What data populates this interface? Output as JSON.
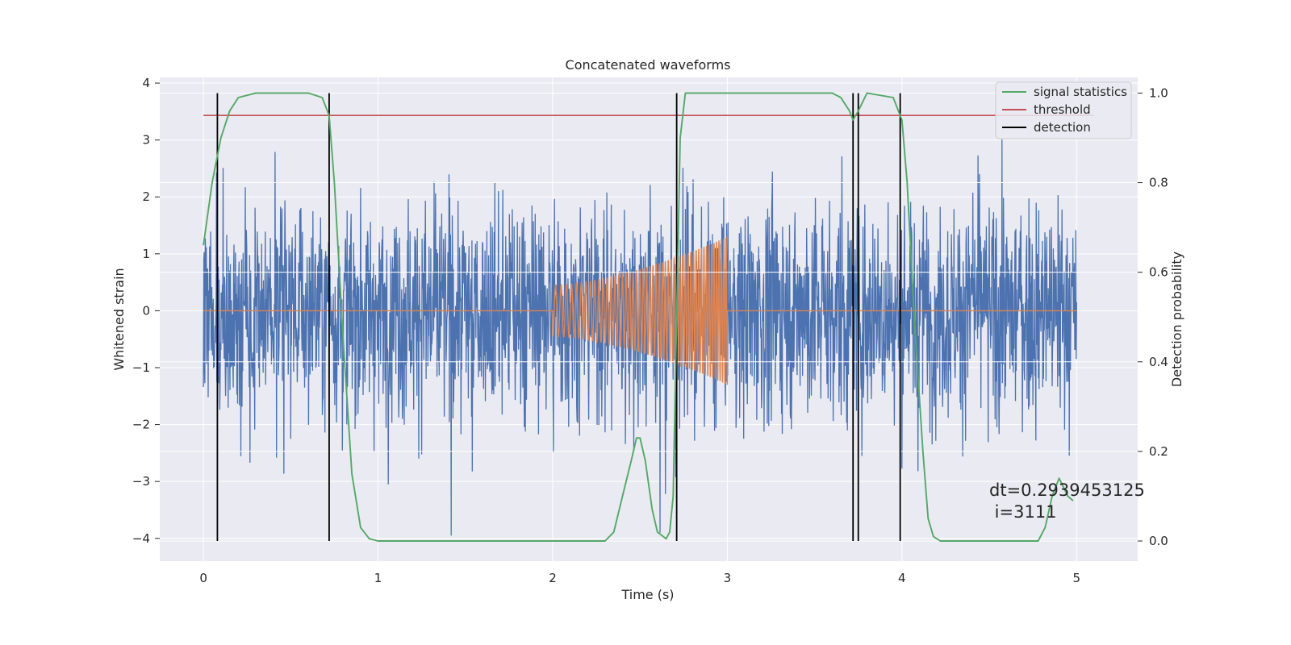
{
  "chart_data": {
    "type": "line",
    "title": "Concatenated waveforms",
    "xlabel": "Time (s)",
    "ylabel": "Whitened strain",
    "ylabel_right": "Detection probability",
    "xlim": [
      -0.25,
      5.35
    ],
    "ylim": [
      -4.4,
      4.1
    ],
    "ylim_right": [
      -0.045,
      1.035
    ],
    "xticks": [
      0,
      1,
      2,
      3,
      4,
      5
    ],
    "yticks": [
      -4,
      -3,
      -2,
      -1,
      0,
      1,
      2,
      3,
      4
    ],
    "yticks_right": [
      0.0,
      0.2,
      0.4,
      0.6,
      0.8,
      1.0
    ],
    "xtick_labels": [
      "0",
      "1",
      "2",
      "3",
      "4",
      "5"
    ],
    "ytick_labels": [
      "−4",
      "−3",
      "−2",
      "−1",
      "0",
      "1",
      "2",
      "3",
      "4"
    ],
    "ytick_right_labels": [
      "0.0",
      "0.2",
      "0.4",
      "0.6",
      "0.8",
      "1.0"
    ],
    "grid": true,
    "legend_position": "top-right",
    "legend": [
      {
        "label": "signal statistics",
        "color": "#55a868"
      },
      {
        "label": "threshold",
        "color": "#c44e52"
      },
      {
        "label": "detection",
        "color": "#000000"
      }
    ],
    "colors": {
      "strain": "#4c72b0",
      "injection": "#dd8452",
      "signal_statistics": "#55a868",
      "threshold": "#c44e52",
      "detection": "#000000",
      "plot_background": "#eaeaf2",
      "grid": "#ffffff"
    },
    "series": [
      {
        "name": "strain",
        "axis": "left",
        "x_range": [
          0,
          5
        ],
        "amplitude_range": [
          -4.0,
          3.7
        ],
        "description_values": {
          "typical_min": -1.3,
          "typical_max": 1.3
        }
      },
      {
        "name": "injection",
        "axis": "left",
        "x_range": [
          0,
          5
        ],
        "chirp_start": 2.0,
        "chirp_end": 3.0,
        "amplitude_start": 0.45,
        "amplitude_end": 1.3
      },
      {
        "name": "signal statistics",
        "axis": "right",
        "points": [
          [
            0.0,
            0.66
          ],
          [
            0.05,
            0.8
          ],
          [
            0.1,
            0.9
          ],
          [
            0.15,
            0.96
          ],
          [
            0.2,
            0.99
          ],
          [
            0.3,
            1.0
          ],
          [
            0.6,
            1.0
          ],
          [
            0.68,
            0.99
          ],
          [
            0.72,
            0.95
          ],
          [
            0.75,
            0.8
          ],
          [
            0.8,
            0.45
          ],
          [
            0.85,
            0.15
          ],
          [
            0.9,
            0.03
          ],
          [
            0.95,
            0.005
          ],
          [
            1.0,
            0.0
          ],
          [
            2.3,
            0.0
          ],
          [
            2.35,
            0.02
          ],
          [
            2.4,
            0.1
          ],
          [
            2.45,
            0.18
          ],
          [
            2.48,
            0.23
          ],
          [
            2.5,
            0.23
          ],
          [
            2.53,
            0.18
          ],
          [
            2.57,
            0.07
          ],
          [
            2.6,
            0.02
          ],
          [
            2.65,
            0.005
          ],
          [
            2.67,
            0.02
          ],
          [
            2.69,
            0.1
          ],
          [
            2.71,
            0.5
          ],
          [
            2.73,
            0.9
          ],
          [
            2.76,
            1.0
          ],
          [
            3.6,
            1.0
          ],
          [
            3.65,
            0.99
          ],
          [
            3.7,
            0.96
          ],
          [
            3.72,
            0.94
          ],
          [
            3.75,
            0.96
          ],
          [
            3.8,
            1.0
          ],
          [
            3.95,
            0.99
          ],
          [
            4.0,
            0.94
          ],
          [
            4.03,
            0.8
          ],
          [
            4.07,
            0.5
          ],
          [
            4.12,
            0.2
          ],
          [
            4.15,
            0.05
          ],
          [
            4.18,
            0.01
          ],
          [
            4.22,
            0.0
          ],
          [
            4.78,
            0.0
          ],
          [
            4.82,
            0.03
          ],
          [
            4.86,
            0.1
          ],
          [
            4.9,
            0.14
          ],
          [
            4.95,
            0.1
          ],
          [
            4.98,
            0.09
          ]
        ]
      },
      {
        "name": "threshold",
        "axis": "right",
        "x": [
          0,
          5.1
        ],
        "value": 0.95
      },
      {
        "name": "detection",
        "axis": "right",
        "x_values": [
          0.08,
          0.72,
          2.71,
          3.72,
          3.75,
          3.99
        ],
        "y_range": [
          0.0,
          1.0
        ]
      }
    ],
    "annotation": {
      "line1": "dt=0.2939453125",
      "line2": " i=3111",
      "x": 4.55,
      "y_right": 0.1
    }
  }
}
